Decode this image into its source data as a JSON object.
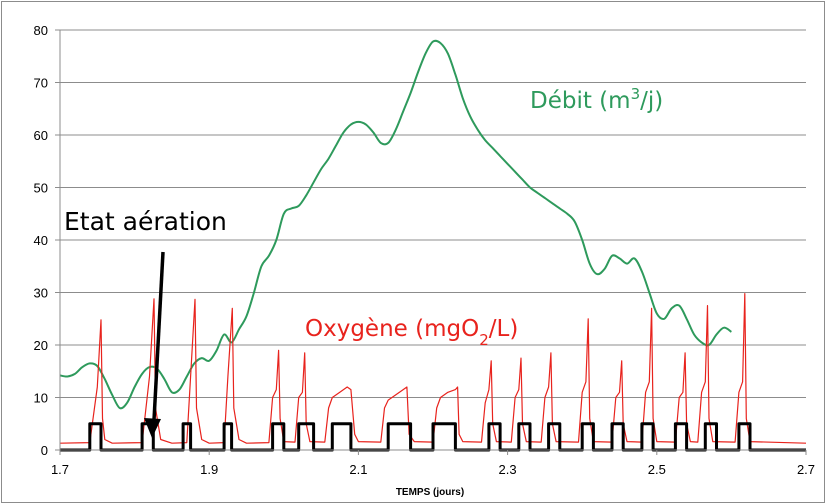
{
  "chart_data": {
    "type": "line",
    "xlabel": "TEMPS (jours)",
    "xlim": [
      1.7,
      2.7
    ],
    "ylim": [
      0,
      80
    ],
    "x_ticks": [
      "1.7",
      "1.9",
      "2.1",
      "2.3",
      "2.5",
      "2.7"
    ],
    "y_ticks": [
      "0",
      "10",
      "20",
      "30",
      "40",
      "50",
      "60",
      "70",
      "80"
    ],
    "grid": "horizontal",
    "annotations": {
      "debit": {
        "text": "Débit (m",
        "sup": "3",
        "after": "/j)",
        "color": "#2e9a5c"
      },
      "oxygene": {
        "text": "Oxygène (mgO",
        "sub": "2",
        "after": "/L)",
        "color": "#e8231d"
      },
      "aeration": {
        "text": "Etat aération",
        "color": "#000000"
      }
    },
    "series": [
      {
        "key": "debit",
        "color": "#2e9a5c",
        "points": [
          [
            1.7,
            14.2
          ],
          [
            1.71,
            14
          ],
          [
            1.72,
            14.5
          ],
          [
            1.73,
            15.8
          ],
          [
            1.74,
            16.5
          ],
          [
            1.75,
            16
          ],
          [
            1.76,
            13.5
          ],
          [
            1.77,
            10.5
          ],
          [
            1.78,
            8
          ],
          [
            1.79,
            9
          ],
          [
            1.8,
            12
          ],
          [
            1.81,
            14.5
          ],
          [
            1.82,
            15.8
          ],
          [
            1.83,
            15.5
          ],
          [
            1.84,
            13.5
          ],
          [
            1.85,
            11
          ],
          [
            1.86,
            11.5
          ],
          [
            1.87,
            14
          ],
          [
            1.88,
            16.5
          ],
          [
            1.89,
            17.5
          ],
          [
            1.9,
            17
          ],
          [
            1.91,
            19
          ],
          [
            1.92,
            22
          ],
          [
            1.93,
            20.5
          ],
          [
            1.94,
            23
          ],
          [
            1.95,
            25.5
          ],
          [
            1.96,
            30
          ],
          [
            1.97,
            35
          ],
          [
            1.98,
            37
          ],
          [
            1.99,
            40
          ],
          [
            2.0,
            45
          ],
          [
            2.01,
            46
          ],
          [
            2.02,
            46.5
          ],
          [
            2.03,
            48.5
          ],
          [
            2.04,
            51
          ],
          [
            2.05,
            53.5
          ],
          [
            2.06,
            55.5
          ],
          [
            2.07,
            58
          ],
          [
            2.08,
            60.5
          ],
          [
            2.09,
            62
          ],
          [
            2.1,
            62.5
          ],
          [
            2.11,
            62
          ],
          [
            2.12,
            60.5
          ],
          [
            2.13,
            58.5
          ],
          [
            2.14,
            58.5
          ],
          [
            2.15,
            61
          ],
          [
            2.16,
            64.5
          ],
          [
            2.17,
            68
          ],
          [
            2.18,
            72
          ],
          [
            2.19,
            75.5
          ],
          [
            2.2,
            77.8
          ],
          [
            2.21,
            77.5
          ],
          [
            2.22,
            75.5
          ],
          [
            2.23,
            71.5
          ],
          [
            2.24,
            67
          ],
          [
            2.25,
            63.5
          ],
          [
            2.26,
            61
          ],
          [
            2.27,
            59
          ],
          [
            2.28,
            57.5
          ],
          [
            2.29,
            56
          ],
          [
            2.3,
            54.5
          ],
          [
            2.31,
            53
          ],
          [
            2.32,
            51.5
          ],
          [
            2.33,
            50
          ],
          [
            2.34,
            49
          ],
          [
            2.35,
            48
          ],
          [
            2.36,
            47
          ],
          [
            2.37,
            46
          ],
          [
            2.38,
            45
          ],
          [
            2.39,
            43.5
          ],
          [
            2.4,
            40
          ],
          [
            2.41,
            35.5
          ],
          [
            2.42,
            33.5
          ],
          [
            2.43,
            34.5
          ],
          [
            2.44,
            37
          ],
          [
            2.45,
            36.5
          ],
          [
            2.46,
            35.5
          ],
          [
            2.47,
            36.5
          ],
          [
            2.48,
            34
          ],
          [
            2.49,
            30
          ],
          [
            2.5,
            26
          ],
          [
            2.51,
            25
          ],
          [
            2.52,
            27
          ],
          [
            2.53,
            27.5
          ],
          [
            2.54,
            25
          ],
          [
            2.55,
            22
          ],
          [
            2.56,
            20.5
          ],
          [
            2.57,
            20
          ],
          [
            2.58,
            22
          ],
          [
            2.59,
            23.3
          ],
          [
            2.6,
            22.5
          ]
        ]
      },
      {
        "key": "oxygene",
        "color": "#e8231d",
        "points": [
          [
            1.7,
            1.3
          ],
          [
            1.74,
            1.4
          ],
          [
            1.75,
            12
          ],
          [
            1.755,
            24.8
          ],
          [
            1.757,
            6
          ],
          [
            1.76,
            2
          ],
          [
            1.77,
            1.3
          ],
          [
            1.81,
            1.4
          ],
          [
            1.82,
            14
          ],
          [
            1.826,
            28.8
          ],
          [
            1.828,
            8
          ],
          [
            1.835,
            2
          ],
          [
            1.85,
            1.3
          ],
          [
            1.87,
            1.4
          ],
          [
            1.875,
            14
          ],
          [
            1.881,
            28.7
          ],
          [
            1.883,
            8
          ],
          [
            1.89,
            2
          ],
          [
            1.9,
            1.3
          ],
          [
            1.92,
            1.4
          ],
          [
            1.925,
            14
          ],
          [
            1.931,
            27
          ],
          [
            1.933,
            8
          ],
          [
            1.94,
            2
          ],
          [
            1.95,
            1.3
          ],
          [
            1.98,
            1.4
          ],
          [
            1.985,
            10
          ],
          [
            1.99,
            11.5
          ],
          [
            1.993,
            19
          ],
          [
            1.995,
            6
          ],
          [
            2.0,
            1.6
          ],
          [
            2.015,
            1.5
          ],
          [
            2.02,
            10
          ],
          [
            2.025,
            11
          ],
          [
            2.028,
            18.5
          ],
          [
            2.03,
            5
          ],
          [
            2.035,
            1.6
          ],
          [
            2.055,
            1.5
          ],
          [
            2.06,
            8
          ],
          [
            2.065,
            10
          ],
          [
            2.075,
            11
          ],
          [
            2.085,
            12
          ],
          [
            2.09,
            11.5
          ],
          [
            2.095,
            3
          ],
          [
            2.1,
            1.6
          ],
          [
            2.13,
            1.5
          ],
          [
            2.135,
            8
          ],
          [
            2.14,
            9.5
          ],
          [
            2.15,
            10.5
          ],
          [
            2.16,
            11.5
          ],
          [
            2.165,
            12
          ],
          [
            2.168,
            3
          ],
          [
            2.175,
            1.6
          ],
          [
            2.2,
            1.5
          ],
          [
            2.205,
            8
          ],
          [
            2.21,
            10
          ],
          [
            2.22,
            11
          ],
          [
            2.23,
            11.5
          ],
          [
            2.233,
            12
          ],
          [
            2.235,
            3
          ],
          [
            2.24,
            1.6
          ],
          [
            2.265,
            1.5
          ],
          [
            2.27,
            9
          ],
          [
            2.275,
            11.5
          ],
          [
            2.278,
            17
          ],
          [
            2.28,
            5
          ],
          [
            2.285,
            1.6
          ],
          [
            2.305,
            1.5
          ],
          [
            2.31,
            10
          ],
          [
            2.315,
            11.5
          ],
          [
            2.318,
            17.5
          ],
          [
            2.32,
            5
          ],
          [
            2.325,
            1.6
          ],
          [
            2.345,
            1.5
          ],
          [
            2.35,
            10
          ],
          [
            2.355,
            12
          ],
          [
            2.358,
            18.5
          ],
          [
            2.36,
            5
          ],
          [
            2.365,
            1.6
          ],
          [
            2.395,
            1.5
          ],
          [
            2.4,
            11
          ],
          [
            2.405,
            13
          ],
          [
            2.408,
            25
          ],
          [
            2.41,
            6
          ],
          [
            2.415,
            1.6
          ],
          [
            2.44,
            1.5
          ],
          [
            2.445,
            10
          ],
          [
            2.45,
            11
          ],
          [
            2.453,
            17
          ],
          [
            2.455,
            5
          ],
          [
            2.46,
            1.6
          ],
          [
            2.48,
            1.5
          ],
          [
            2.485,
            11
          ],
          [
            2.49,
            13
          ],
          [
            2.493,
            27
          ],
          [
            2.495,
            6
          ],
          [
            2.5,
            1.6
          ],
          [
            2.525,
            1.5
          ],
          [
            2.53,
            10
          ],
          [
            2.535,
            11
          ],
          [
            2.538,
            18.5
          ],
          [
            2.54,
            5
          ],
          [
            2.545,
            1.6
          ],
          [
            2.555,
            1.5
          ],
          [
            2.56,
            11
          ],
          [
            2.565,
            13
          ],
          [
            2.568,
            27.5
          ],
          [
            2.57,
            6
          ],
          [
            2.575,
            1.6
          ],
          [
            2.605,
            1.5
          ],
          [
            2.61,
            11
          ],
          [
            2.615,
            13
          ],
          [
            2.618,
            29.8
          ],
          [
            2.62,
            6
          ],
          [
            2.625,
            1.6
          ],
          [
            2.7,
            1.3
          ]
        ]
      },
      {
        "key": "aeration",
        "color": "#000000",
        "step": true,
        "low": 0,
        "high": 5,
        "on_intervals": [
          [
            1.74,
            1.755
          ],
          [
            1.81,
            1.825
          ],
          [
            1.865,
            1.875
          ],
          [
            1.92,
            1.93
          ],
          [
            1.985,
            2.0
          ],
          [
            2.02,
            2.04
          ],
          [
            2.065,
            2.09
          ],
          [
            2.14,
            2.17
          ],
          [
            2.2,
            2.23
          ],
          [
            2.275,
            2.29
          ],
          [
            2.315,
            2.33
          ],
          [
            2.355,
            2.37
          ],
          [
            2.4,
            2.415
          ],
          [
            2.44,
            2.455
          ],
          [
            2.48,
            2.495
          ],
          [
            2.525,
            2.54
          ],
          [
            2.565,
            2.58
          ],
          [
            2.61,
            2.625
          ]
        ]
      }
    ]
  }
}
